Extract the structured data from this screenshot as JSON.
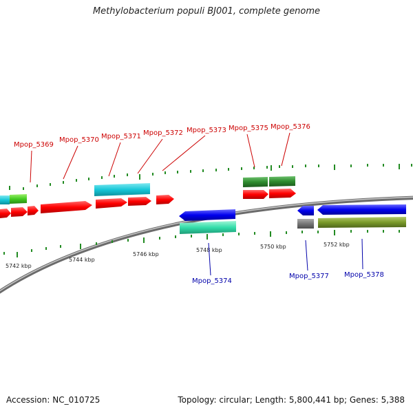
{
  "title": "Methylobacterium populi BJ001, complete genome",
  "footer": {
    "accession": "Accession: NC_010725",
    "topology": "Topology: circular; Length: 5,800,441 bp; Genes: 5,388"
  },
  "kbp_labels": [
    "5742 kbp",
    "5744 kbp",
    "5746 kbp",
    "5748 kbp",
    "5750 kbp",
    "5752 kbp"
  ],
  "upper_labels": [
    "Mpop_5369",
    "Mpop_5370",
    "Mpop_5371",
    "Mpop_5372",
    "Mpop_5373",
    "Mpop_5375",
    "Mpop_5376"
  ],
  "lower_labels": [
    "Mpop_5374",
    "Mpop_5377",
    "Mpop_5378"
  ],
  "colors": {
    "upper_label": "#cc0000",
    "lower_label": "#0000aa",
    "backbone": "#888888",
    "cds_forward": "#ff0000",
    "cds_reverse": "#0000ee",
    "cyan_feature": "#17c7d8",
    "green_feature": "#2e8b2e",
    "aqua_feature": "#33ddaa",
    "olive_feature": "#7a9a2a",
    "gray_feature": "#777777",
    "tick": "#228b22"
  }
}
